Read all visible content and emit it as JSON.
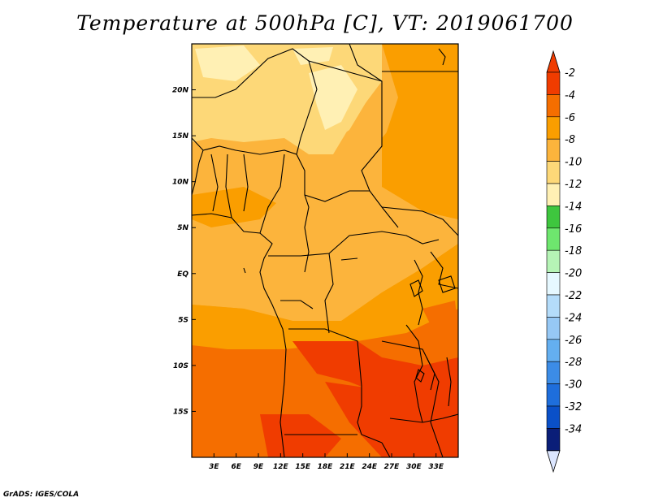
{
  "title": "Temperature at 500hPa [C], VT: 2019061700",
  "credit": "GrADS: IGES/COLA",
  "map": {
    "lon_range": [
      0,
      36
    ],
    "lat_range": [
      -20,
      25
    ],
    "lat_ticks": [
      {
        "value": 20,
        "label": "20N"
      },
      {
        "value": 15,
        "label": "15N"
      },
      {
        "value": 10,
        "label": "10N"
      },
      {
        "value": 5,
        "label": "5N"
      },
      {
        "value": 0,
        "label": "EQ"
      },
      {
        "value": -5,
        "label": "5S"
      },
      {
        "value": -10,
        "label": "10S"
      },
      {
        "value": -15,
        "label": "15S"
      }
    ],
    "lon_ticks": [
      {
        "value": 3,
        "label": "3E"
      },
      {
        "value": 6,
        "label": "6E"
      },
      {
        "value": 9,
        "label": "9E"
      },
      {
        "value": 12,
        "label": "12E"
      },
      {
        "value": 15,
        "label": "15E"
      },
      {
        "value": 18,
        "label": "18E"
      },
      {
        "value": 21,
        "label": "21E"
      },
      {
        "value": 24,
        "label": "24E"
      },
      {
        "value": 27,
        "label": "27E"
      },
      {
        "value": 30,
        "label": "30E"
      },
      {
        "value": 33,
        "label": "33E"
      }
    ]
  },
  "colorbar": {
    "labels": [
      "-2",
      "-4",
      "-6",
      "-8",
      "-10",
      "-12",
      "-14",
      "-16",
      "-18",
      "-20",
      "-22",
      "-24",
      "-26",
      "-28",
      "-30",
      "-32",
      "-34"
    ],
    "colors": [
      "#f03c00",
      "#f56e00",
      "#fa9e00",
      "#fcb43c",
      "#fdd878",
      "#fff0b4",
      "#3ec63e",
      "#6ee66e",
      "#b6f4b6",
      "#e6f8ff",
      "#b4dcfa",
      "#96c8f5",
      "#64aff0",
      "#3c8ce6",
      "#1e6edc",
      "#0a50c8",
      "#0a1e78"
    ],
    "top_cap_color": "#f03c00",
    "bottom_cap_color": "#dce6ff"
  }
}
